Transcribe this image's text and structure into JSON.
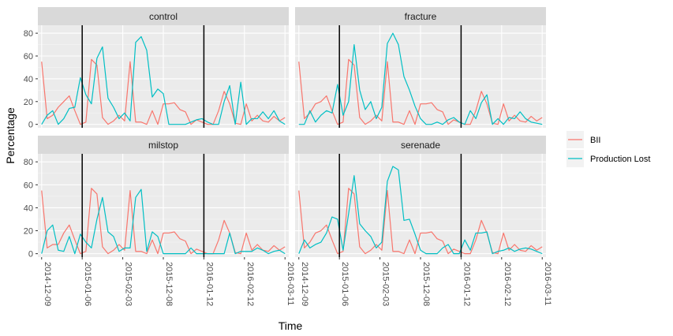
{
  "chart_data": {
    "type": "line",
    "xlabel": "Time",
    "ylabel": "Percentage",
    "ylim": [
      -3,
      87
    ],
    "y_ticks": [
      "0",
      "20",
      "40",
      "60",
      "80"
    ],
    "x_tick_labels": [
      "2014-12-09",
      "2015-01-06",
      "2015-02-03",
      "2015-12-08",
      "2016-01-12",
      "2016-02-12",
      "2016-03-11"
    ],
    "vertical_reference_lines_at_tick_index": [
      1,
      4
    ],
    "grid": true,
    "legend_position": "right",
    "series_colors": {
      "BII": "#F8766D",
      "Production Lost": "#00BFC4"
    },
    "legend": [
      {
        "label": "BII"
      },
      {
        "label": "Production Lost"
      }
    ],
    "panels": [
      {
        "title": "control",
        "series": [
          {
            "name": "BII",
            "values": [
              55,
              5,
              8,
              15,
              20,
              25,
              12,
              0,
              2,
              57,
              52,
              6,
              0,
              3,
              8,
              3,
              55,
              2,
              2,
              0,
              12,
              0,
              18,
              18,
              19,
              13,
              11,
              0,
              4,
              2,
              0,
              0,
              12,
              29,
              18,
              1,
              0,
              18,
              3,
              8,
              3,
              2,
              7,
              3,
              6
            ]
          },
          {
            "name": "Production Lost",
            "values": [
              0,
              8,
              12,
              0,
              5,
              14,
              15,
              41,
              26,
              18,
              58,
              68,
              23,
              15,
              5,
              10,
              3,
              72,
              77,
              65,
              24,
              31,
              27,
              0,
              0,
              0,
              0,
              2,
              4,
              5,
              2,
              0,
              0,
              20,
              34,
              0,
              37,
              0,
              5,
              5,
              11,
              5,
              12,
              3,
              0
            ]
          }
        ]
      },
      {
        "title": "fracture",
        "series": [
          {
            "name": "BII",
            "values": [
              55,
              5,
              10,
              18,
              20,
              25,
              12,
              0,
              2,
              57,
              52,
              6,
              0,
              3,
              8,
              3,
              55,
              2,
              2,
              0,
              12,
              0,
              18,
              18,
              19,
              13,
              11,
              0,
              4,
              2,
              0,
              0,
              12,
              29,
              18,
              1,
              0,
              18,
              3,
              8,
              3,
              2,
              7,
              3,
              6
            ]
          },
          {
            "name": "Production Lost",
            "values": [
              0,
              0,
              12,
              2,
              8,
              12,
              10,
              35,
              8,
              20,
              70,
              30,
              13,
              20,
              5,
              15,
              71,
              80,
              70,
              42,
              30,
              16,
              5,
              0,
              0,
              2,
              0,
              4,
              6,
              2,
              0,
              12,
              5,
              19,
              26,
              0,
              5,
              0,
              6,
              5,
              11,
              5,
              2,
              1,
              0
            ]
          }
        ]
      },
      {
        "title": "milstop",
        "series": [
          {
            "name": "BII",
            "values": [
              55,
              5,
              8,
              8,
              18,
              25,
              12,
              0,
              2,
              57,
              52,
              6,
              0,
              3,
              8,
              3,
              55,
              2,
              2,
              0,
              12,
              0,
              18,
              18,
              19,
              13,
              11,
              0,
              4,
              2,
              0,
              0,
              12,
              29,
              18,
              1,
              0,
              18,
              3,
              8,
              3,
              2,
              7,
              3,
              6
            ]
          },
          {
            "name": "Production Lost",
            "values": [
              0,
              20,
              25,
              3,
              2,
              15,
              0,
              17,
              10,
              5,
              30,
              49,
              19,
              15,
              2,
              5,
              5,
              49,
              56,
              2,
              19,
              15,
              0,
              0,
              0,
              0,
              0,
              5,
              0,
              0,
              0,
              0,
              0,
              0,
              18,
              0,
              2,
              2,
              2,
              5,
              3,
              0,
              2,
              3,
              0
            ]
          }
        ]
      },
      {
        "title": "serenade",
        "series": [
          {
            "name": "BII",
            "values": [
              55,
              5,
              10,
              18,
              20,
              25,
              12,
              0,
              2,
              57,
              52,
              6,
              0,
              3,
              8,
              3,
              55,
              2,
              2,
              0,
              12,
              0,
              18,
              18,
              19,
              13,
              11,
              0,
              4,
              2,
              0,
              0,
              12,
              29,
              18,
              1,
              0,
              18,
              3,
              8,
              3,
              2,
              7,
              3,
              6
            ]
          },
          {
            "name": "Production Lost",
            "values": [
              0,
              12,
              5,
              8,
              10,
              18,
              32,
              30,
              3,
              35,
              68,
              26,
              20,
              15,
              5,
              10,
              63,
              76,
              73,
              29,
              30,
              17,
              3,
              0,
              0,
              0,
              5,
              8,
              0,
              0,
              12,
              3,
              18,
              18,
              19,
              0,
              2,
              3,
              5,
              2,
              4,
              5,
              4,
              2,
              0
            ]
          }
        ]
      }
    ]
  }
}
